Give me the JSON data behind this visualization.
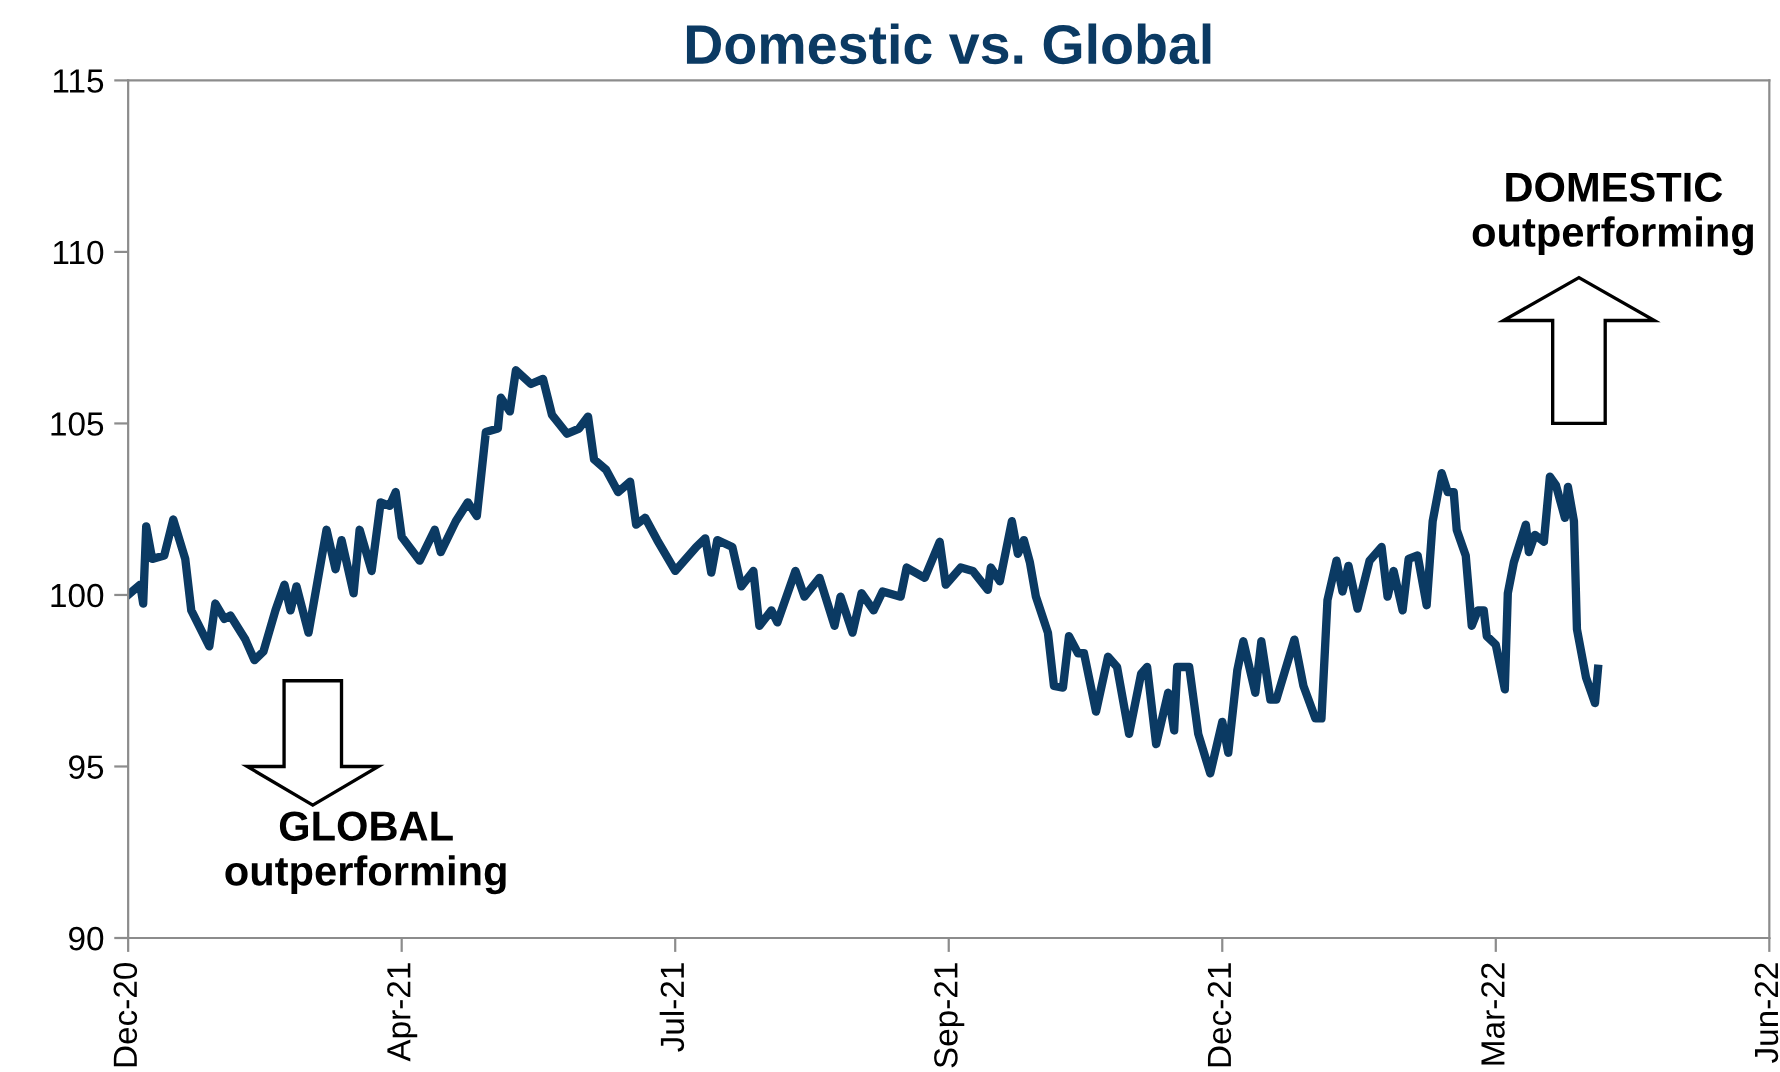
{
  "chart_data": {
    "type": "line",
    "title": "Domestic vs. Global",
    "x": [
      "2020-12-31",
      "2021-01-04",
      "2021-01-05",
      "2021-01-06",
      "2021-01-08",
      "2021-01-12",
      "2021-01-15",
      "2021-01-19",
      "2021-01-21",
      "2021-01-27",
      "2021-01-29",
      "2021-02-01",
      "2021-02-03",
      "2021-02-08",
      "2021-02-11",
      "2021-02-14",
      "2021-02-18",
      "2021-02-21",
      "2021-02-23",
      "2021-02-25",
      "2021-03-01",
      "2021-03-04",
      "2021-03-07",
      "2021-03-10",
      "2021-03-12",
      "2021-03-16",
      "2021-03-18",
      "2021-03-22",
      "2021-03-25",
      "2021-03-28",
      "2021-03-30",
      "2021-04-01",
      "2021-04-07",
      "2021-04-12",
      "2021-04-14",
      "2021-04-19",
      "2021-04-23",
      "2021-04-26",
      "2021-04-29",
      "2021-05-03",
      "2021-05-04",
      "2021-05-07",
      "2021-05-09",
      "2021-05-14",
      "2021-05-18",
      "2021-05-21",
      "2021-05-26",
      "2021-05-30",
      "2021-06-02",
      "2021-06-04",
      "2021-06-08",
      "2021-06-12",
      "2021-06-16",
      "2021-06-18",
      "2021-06-21",
      "2021-06-25",
      "2021-07-01",
      "2021-07-08",
      "2021-07-11",
      "2021-07-13",
      "2021-07-15",
      "2021-07-20",
      "2021-07-23",
      "2021-07-27",
      "2021-07-29",
      "2021-08-02",
      "2021-08-04",
      "2021-08-10",
      "2021-08-13",
      "2021-08-18",
      "2021-08-23",
      "2021-08-25",
      "2021-08-29",
      "2021-09-01",
      "2021-09-05",
      "2021-09-08",
      "2021-09-14",
      "2021-09-16",
      "2021-09-22",
      "2021-09-27",
      "2021-09-29",
      "2021-10-04",
      "2021-10-08",
      "2021-10-13",
      "2021-10-14",
      "2021-10-17",
      "2021-10-21",
      "2021-10-23",
      "2021-10-25",
      "2021-10-27",
      "2021-10-29",
      "2021-11-02",
      "2021-11-04",
      "2021-11-07",
      "2021-11-09",
      "2021-11-12",
      "2021-11-14",
      "2021-11-18",
      "2021-11-22",
      "2021-11-25",
      "2021-11-29",
      "2021-12-03",
      "2021-12-05",
      "2021-12-08",
      "2021-12-12",
      "2021-12-14",
      "2021-12-15",
      "2021-12-19",
      "2021-12-22",
      "2021-12-26",
      "2021-12-30",
      "2022-01-01",
      "2022-01-04",
      "2022-01-06",
      "2022-01-10",
      "2022-01-12",
      "2022-01-15",
      "2022-01-17",
      "2022-01-23",
      "2022-01-26",
      "2022-01-30",
      "2022-02-01",
      "2022-02-03",
      "2022-02-06",
      "2022-02-08",
      "2022-02-10",
      "2022-02-13",
      "2022-02-17",
      "2022-02-21",
      "2022-02-23",
      "2022-02-25",
      "2022-02-28",
      "2022-03-02",
      "2022-03-05",
      "2022-03-08",
      "2022-03-10",
      "2022-03-13",
      "2022-03-15",
      "2022-03-17",
      "2022-03-18",
      "2022-03-21",
      "2022-03-23",
      "2022-03-25",
      "2022-03-27",
      "2022-03-28",
      "2022-03-31",
      "2022-04-03",
      "2022-04-04",
      "2022-04-06",
      "2022-04-10",
      "2022-04-11",
      "2022-04-13",
      "2022-04-16",
      "2022-04-18",
      "2022-04-20",
      "2022-04-23",
      "2022-04-24",
      "2022-04-26",
      "2022-04-27",
      "2022-04-30",
      "2022-05-03",
      "2022-05-04"
    ],
    "series": [
      {
        "color": "#0b3a63",
        "values": [
          100.0,
          100.3,
          99.75,
          102.0,
          101.05,
          101.15,
          102.2,
          101.05,
          99.55,
          98.5,
          99.75,
          99.3,
          99.4,
          98.7,
          98.1,
          98.35,
          99.55,
          100.3,
          99.55,
          100.25,
          98.9,
          100.4,
          101.9,
          100.75,
          101.6,
          100.05,
          101.9,
          100.7,
          102.7,
          102.6,
          103.0,
          101.7,
          101.0,
          101.9,
          101.25,
          102.15,
          102.7,
          102.3,
          104.75,
          104.85,
          105.75,
          105.35,
          106.55,
          106.15,
          106.3,
          105.25,
          104.7,
          104.85,
          105.2,
          103.95,
          103.65,
          103.0,
          103.3,
          102.05,
          102.25,
          101.6,
          100.7,
          101.4,
          101.65,
          100.65,
          101.6,
          101.4,
          100.25,
          100.7,
          99.1,
          99.55,
          99.2,
          100.7,
          99.95,
          100.5,
          99.1,
          99.95,
          98.9,
          100.05,
          99.55,
          100.1,
          99.95,
          100.8,
          100.5,
          101.55,
          100.3,
          100.8,
          100.7,
          100.15,
          100.8,
          100.4,
          102.15,
          101.2,
          101.6,
          100.95,
          99.95,
          98.9,
          97.35,
          97.3,
          98.8,
          98.3,
          98.3,
          96.6,
          98.2,
          97.9,
          95.95,
          97.7,
          97.9,
          95.65,
          97.15,
          96.05,
          97.9,
          97.9,
          95.95,
          94.8,
          96.3,
          95.4,
          97.8,
          98.65,
          97.15,
          98.65,
          96.95,
          96.95,
          98.7,
          97.35,
          96.4,
          96.4,
          99.85,
          101.0,
          100.1,
          100.85,
          99.6,
          101.0,
          101.4,
          99.95,
          100.7,
          99.55,
          101.05,
          101.15,
          99.7,
          102.15,
          103.55,
          103.0,
          103.0,
          101.9,
          101.15,
          99.1,
          99.55,
          99.55,
          98.8,
          98.55,
          97.25,
          100.05,
          100.95,
          102.05,
          101.25,
          101.75,
          101.55,
          103.45,
          103.2,
          102.25,
          103.15,
          102.15,
          99.0,
          97.6,
          96.85,
          97.85
        ]
      }
    ],
    "xlim": [
      "2020-12-31",
      "2022-06-30"
    ],
    "xticks": [
      {
        "value": "2020-12-31",
        "label": "Dec-20"
      },
      {
        "value": "2021-04-01",
        "label": "Apr-21"
      },
      {
        "value": "2021-07-01",
        "label": "Jul-21"
      },
      {
        "value": "2021-09-30",
        "label": "Sep-21"
      },
      {
        "value": "2021-12-30",
        "label": "Dec-21"
      },
      {
        "value": "2022-03-31",
        "label": "Mar-22"
      },
      {
        "value": "2022-06-30",
        "label": "Jun-22"
      }
    ],
    "ylim": [
      90,
      115
    ],
    "yticks": [
      90,
      95,
      100,
      105,
      110,
      115
    ],
    "grid": false,
    "line_style": "solid",
    "annotations": [
      "GLOBAL\noutperforming",
      "DOMESTIC\noutperforming"
    ]
  }
}
